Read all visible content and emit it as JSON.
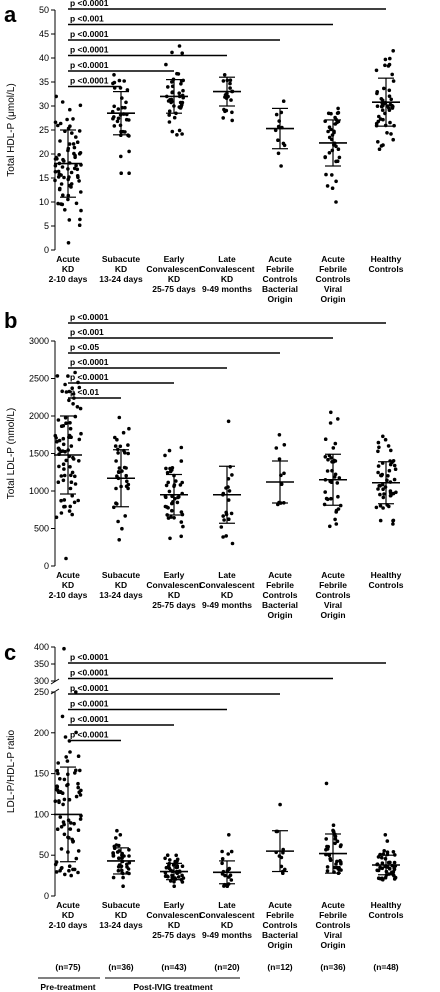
{
  "chart_data": [
    {
      "type": "scatter",
      "panel": "a",
      "ylabel": "Total HDL-P (μmol/L)",
      "ylim": [
        0,
        50
      ],
      "yticks": [
        0,
        5,
        10,
        15,
        20,
        25,
        30,
        35,
        40,
        45,
        50
      ],
      "categories": [
        [
          "Acute",
          "KD",
          "2-10 days"
        ],
        [
          "Subacute",
          "KD",
          "13-24 days"
        ],
        [
          "Early",
          "Convalescent",
          "KD",
          "25-75 days"
        ],
        [
          "Late",
          "Convalescent",
          "KD",
          "9-49 months"
        ],
        [
          "Acute",
          "Febrile",
          "Controls",
          "Bacterial",
          "Origin"
        ],
        [
          "Acute",
          "Febrile",
          "Controls",
          "Viral",
          "Origin"
        ],
        [
          "Healthy",
          "Controls"
        ]
      ],
      "groups": [
        {
          "n": 75,
          "mean": 18,
          "sd": 7,
          "min": 1.5,
          "max": 32
        },
        {
          "n": 36,
          "mean": 28.5,
          "sd": 4.5,
          "min": 16,
          "max": 36.5
        },
        {
          "n": 43,
          "mean": 32,
          "sd": 3.5,
          "min": 24,
          "max": 42.5
        },
        {
          "n": 20,
          "mean": 33,
          "sd": 3,
          "min": 27,
          "max": 36.5
        },
        {
          "n": 12,
          "mean": 25.3,
          "sd": 4.2,
          "min": 17.5,
          "max": 31
        },
        {
          "n": 36,
          "mean": 22.3,
          "sd": 4.8,
          "min": 10,
          "max": 29.5
        },
        {
          "n": 48,
          "mean": 30.8,
          "sd": 5,
          "min": 21,
          "max": 41.5
        }
      ],
      "comparisons": [
        {
          "label": "p <0.0001",
          "from": 0,
          "to": 6
        },
        {
          "label": "p <0.001",
          "from": 0,
          "to": 5
        },
        {
          "label": "p <0.0001",
          "from": 0,
          "to": 4
        },
        {
          "label": "p <0.0001",
          "from": 0,
          "to": 3
        },
        {
          "label": "p <0.0001",
          "from": 0,
          "to": 2
        },
        {
          "label": "p <0.0001",
          "from": 0,
          "to": 1
        }
      ]
    },
    {
      "type": "scatter",
      "panel": "b",
      "ylabel": "Total LDL-P (nmol/L)",
      "ylim": [
        0,
        3000
      ],
      "yticks": [
        0,
        500,
        1000,
        1500,
        2000,
        2500,
        3000
      ],
      "categories": [
        [
          "Acute",
          "KD",
          "2-10 days"
        ],
        [
          "Subacute",
          "KD",
          "13-24 days"
        ],
        [
          "Early",
          "Convalescent",
          "KD",
          "25-75 days"
        ],
        [
          "Late",
          "Convalescent",
          "KD",
          "9-49 months"
        ],
        [
          "Acute",
          "Febrile",
          "Controls",
          "Bacterial",
          "Origin"
        ],
        [
          "Acute",
          "Febrile",
          "Controls",
          "Viral",
          "Origin"
        ],
        [
          "Healthy",
          "Controls"
        ]
      ],
      "groups": [
        {
          "n": 75,
          "mean": 1480,
          "sd": 520,
          "min": 100,
          "max": 2580
        },
        {
          "n": 36,
          "mean": 1170,
          "sd": 380,
          "min": 350,
          "max": 1980
        },
        {
          "n": 43,
          "mean": 950,
          "sd": 270,
          "min": 370,
          "max": 1580
        },
        {
          "n": 20,
          "mean": 950,
          "sd": 380,
          "min": 300,
          "max": 1930
        },
        {
          "n": 12,
          "mean": 1120,
          "sd": 280,
          "min": 820,
          "max": 1750
        },
        {
          "n": 36,
          "mean": 1150,
          "sd": 340,
          "min": 530,
          "max": 2050
        },
        {
          "n": 48,
          "mean": 1110,
          "sd": 280,
          "min": 560,
          "max": 1730
        }
      ],
      "comparisons": [
        {
          "label": "p <0.0001",
          "from": 0,
          "to": 6
        },
        {
          "label": "p <0.001",
          "from": 0,
          "to": 5
        },
        {
          "label": "p <0.05",
          "from": 0,
          "to": 4
        },
        {
          "label": "p <0.0001",
          "from": 0,
          "to": 3
        },
        {
          "label": "p <0.0001",
          "from": 0,
          "to": 2
        },
        {
          "label": "p <0.01",
          "from": 0,
          "to": 1
        }
      ]
    },
    {
      "type": "scatter",
      "panel": "c",
      "ylabel": "LDL-P/HDL-P ratio",
      "ylim": [
        0,
        400
      ],
      "axis_break": [
        250,
        300
      ],
      "yticks": [
        0,
        50,
        100,
        150,
        200,
        250,
        300,
        350,
        400
      ],
      "categories": [
        [
          "Acute",
          "KD",
          "2-10 days"
        ],
        [
          "Subacute",
          "KD",
          "13-24 days"
        ],
        [
          "Early",
          "Convalescent",
          "KD",
          "25-75 days"
        ],
        [
          "Late",
          "Convalescent",
          "KD",
          "9-49 months"
        ],
        [
          "Acute",
          "Febrile",
          "Controls",
          "Bacterial",
          "Origin"
        ],
        [
          "Acute",
          "Febrile",
          "Controls",
          "Viral",
          "Origin"
        ],
        [
          "Healthy",
          "Controls"
        ]
      ],
      "n_labels": [
        "(n=75)",
        "(n=36)",
        "(n=43)",
        "(n=20)",
        "(n=12)",
        "(n=36)",
        "(n=48)"
      ],
      "treatment_labels": {
        "pre": "Pre-treatment",
        "post": "Post-IVIG treatment"
      },
      "groups": [
        {
          "n": 75,
          "mean": 100,
          "sd": 58,
          "min": 25,
          "max": 250,
          "outlier": 395
        },
        {
          "n": 36,
          "mean": 43,
          "sd": 16,
          "min": 12,
          "max": 80
        },
        {
          "n": 43,
          "mean": 30,
          "sd": 10,
          "min": 12,
          "max": 50
        },
        {
          "n": 20,
          "mean": 29,
          "sd": 14,
          "min": 12,
          "max": 75
        },
        {
          "n": 12,
          "mean": 55,
          "sd": 25,
          "min": 28,
          "max": 112
        },
        {
          "n": 36,
          "mean": 52,
          "sd": 24,
          "min": 28,
          "max": 138
        },
        {
          "n": 48,
          "mean": 38,
          "sd": 12,
          "min": 20,
          "max": 75
        }
      ],
      "comparisons": [
        {
          "label": "p <0.0001",
          "from": 0,
          "to": 6
        },
        {
          "label": "p <0.0001",
          "from": 0,
          "to": 5
        },
        {
          "label": "p <0.0001",
          "from": 0,
          "to": 4
        },
        {
          "label": "p <0.0001",
          "from": 0,
          "to": 3
        },
        {
          "label": "p <0.0001",
          "from": 0,
          "to": 2
        },
        {
          "label": "p <0.0001",
          "from": 0,
          "to": 1
        }
      ]
    }
  ],
  "panel_letters": [
    "a",
    "b",
    "c"
  ]
}
